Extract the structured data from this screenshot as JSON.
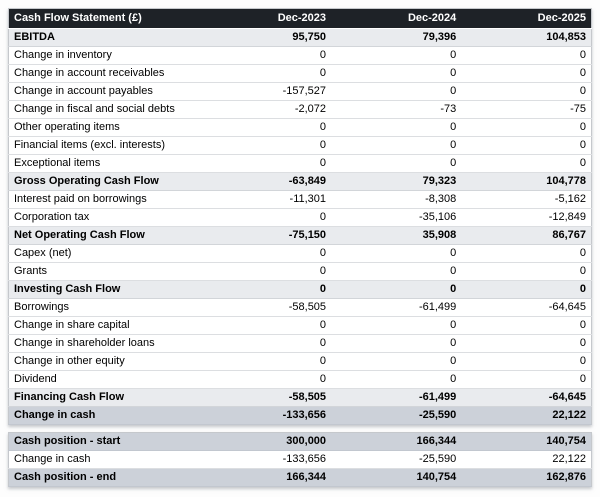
{
  "table": {
    "title": "Cash Flow Statement (£)",
    "columns": [
      "Dec-2023",
      "Dec-2024",
      "Dec-2025"
    ],
    "colors": {
      "header_bg": "#1e2227",
      "header_text": "#ffffff",
      "subtotal_row_bg": "#e9ebee",
      "highlight_row_bg": "#ccd1d9",
      "row_border": "#dcdee1",
      "table_border": "#c5c8cc"
    },
    "rows": [
      {
        "label": "EBITDA",
        "values": [
          "95,750",
          "79,396",
          "104,853"
        ],
        "style": "subtotal"
      },
      {
        "label": "Change in inventory",
        "values": [
          "0",
          "0",
          "0"
        ],
        "style": "normal"
      },
      {
        "label": "Change in account receivables",
        "values": [
          "0",
          "0",
          "0"
        ],
        "style": "normal"
      },
      {
        "label": "Change in account payables",
        "values": [
          "-157,527",
          "0",
          "0"
        ],
        "style": "normal"
      },
      {
        "label": "Change in fiscal and social debts",
        "values": [
          "-2,072",
          "-73",
          "-75"
        ],
        "style": "normal"
      },
      {
        "label": "Other operating items",
        "values": [
          "0",
          "0",
          "0"
        ],
        "style": "normal"
      },
      {
        "label": "Financial items (excl. interests)",
        "values": [
          "0",
          "0",
          "0"
        ],
        "style": "normal"
      },
      {
        "label": "Exceptional items",
        "values": [
          "0",
          "0",
          "0"
        ],
        "style": "normal"
      },
      {
        "label": "Gross Operating Cash Flow",
        "values": [
          "-63,849",
          "79,323",
          "104,778"
        ],
        "style": "subtotal"
      },
      {
        "label": "Interest paid on borrowings",
        "values": [
          "-11,301",
          "-8,308",
          "-5,162"
        ],
        "style": "normal"
      },
      {
        "label": "Corporation tax",
        "values": [
          "0",
          "-35,106",
          "-12,849"
        ],
        "style": "normal"
      },
      {
        "label": "Net Operating Cash Flow",
        "values": [
          "-75,150",
          "35,908",
          "86,767"
        ],
        "style": "subtotal"
      },
      {
        "label": "Capex (net)",
        "values": [
          "0",
          "0",
          "0"
        ],
        "style": "normal"
      },
      {
        "label": "Grants",
        "values": [
          "0",
          "0",
          "0"
        ],
        "style": "normal"
      },
      {
        "label": "Investing Cash Flow",
        "values": [
          "0",
          "0",
          "0"
        ],
        "style": "subtotal"
      },
      {
        "label": "Borrowings",
        "values": [
          "-58,505",
          "-61,499",
          "-64,645"
        ],
        "style": "normal"
      },
      {
        "label": "Change in share capital",
        "values": [
          "0",
          "0",
          "0"
        ],
        "style": "normal"
      },
      {
        "label": "Change in shareholder loans",
        "values": [
          "0",
          "0",
          "0"
        ],
        "style": "normal"
      },
      {
        "label": "Change in other equity",
        "values": [
          "0",
          "0",
          "0"
        ],
        "style": "normal"
      },
      {
        "label": "Dividend",
        "values": [
          "0",
          "0",
          "0"
        ],
        "style": "normal"
      },
      {
        "label": "Financing Cash Flow",
        "values": [
          "-58,505",
          "-61,499",
          "-64,645"
        ],
        "style": "subtotal"
      },
      {
        "label": "Change in cash",
        "values": [
          "-133,656",
          "-25,590",
          "22,122"
        ],
        "style": "highlight"
      }
    ],
    "summary_rows": [
      {
        "label": "Cash position - start",
        "values": [
          "300,000",
          "166,344",
          "140,754"
        ],
        "style": "highlight"
      },
      {
        "label": "Change in cash",
        "values": [
          "-133,656",
          "-25,590",
          "22,122"
        ],
        "style": "normal"
      },
      {
        "label": "Cash position - end",
        "values": [
          "166,344",
          "140,754",
          "162,876"
        ],
        "style": "highlight"
      }
    ]
  }
}
